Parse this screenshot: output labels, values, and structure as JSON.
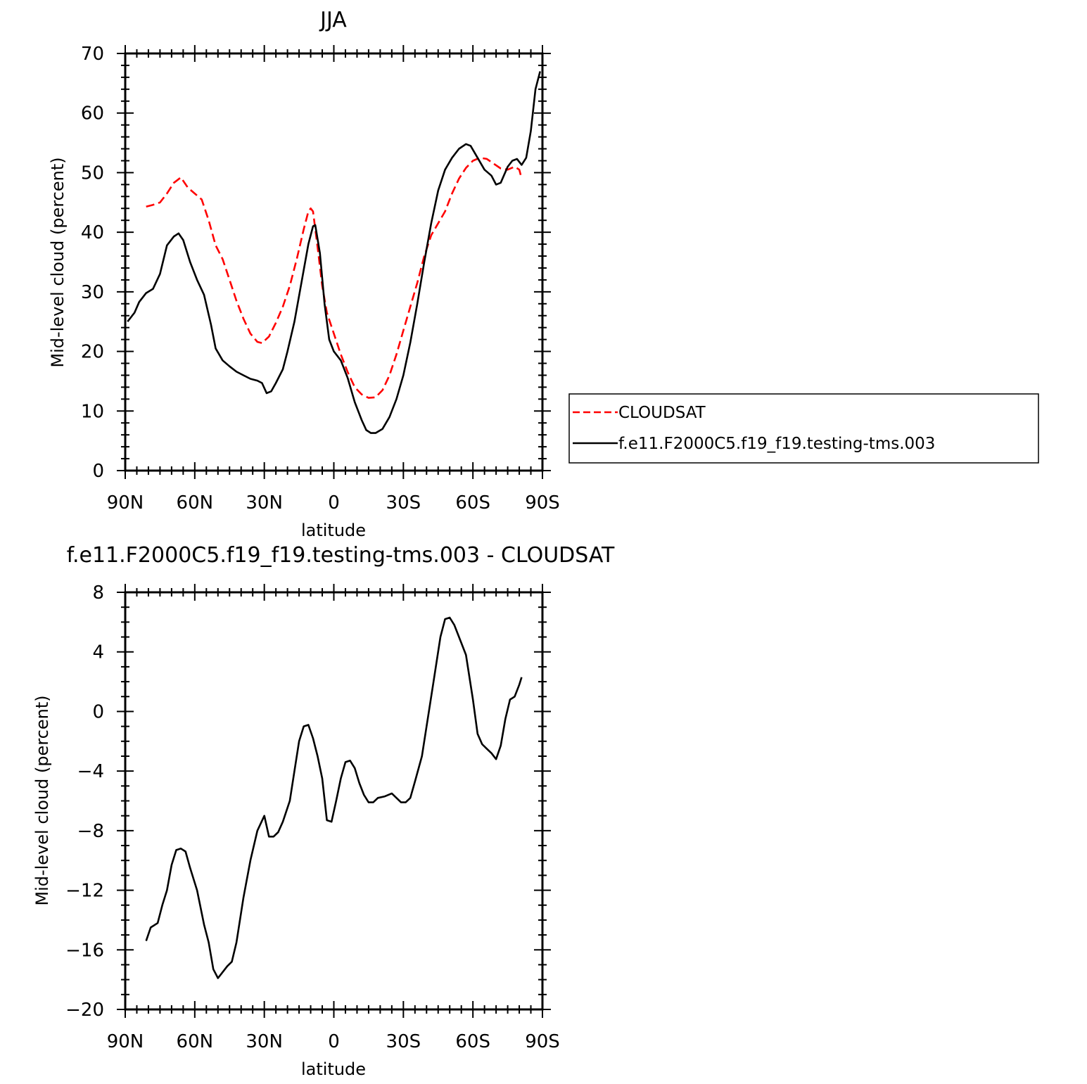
{
  "chart_data": [
    {
      "type": "line",
      "title": "JJA",
      "xlabel": "latitude",
      "ylabel": "Mid-level cloud (percent)",
      "xlim": [
        90,
        -90
      ],
      "ylim": [
        0,
        70
      ],
      "xticks": [
        {
          "value": 90,
          "label": "90N"
        },
        {
          "value": 60,
          "label": "60N"
        },
        {
          "value": 30,
          "label": "30N"
        },
        {
          "value": 0,
          "label": "0"
        },
        {
          "value": -30,
          "label": "30S"
        },
        {
          "value": -60,
          "label": "60S"
        },
        {
          "value": -90,
          "label": "90S"
        }
      ],
      "yticks": [
        {
          "value": 0,
          "label": "0"
        },
        {
          "value": 10,
          "label": "10"
        },
        {
          "value": 20,
          "label": "20"
        },
        {
          "value": 30,
          "label": "30"
        },
        {
          "value": 40,
          "label": "40"
        },
        {
          "value": 50,
          "label": "50"
        },
        {
          "value": 60,
          "label": "60"
        },
        {
          "value": 70,
          "label": "70"
        }
      ],
      "legend_position": "right",
      "series": [
        {
          "name": "CLOUDSAT",
          "color": "#ff0000",
          "dash": "dashed",
          "points": [
            [
              81,
              44.3
            ],
            [
              78,
              44.6
            ],
            [
              75,
              45.0
            ],
            [
              72,
              46.5
            ],
            [
              69,
              48.3
            ],
            [
              66,
              49.2
            ],
            [
              63,
              47.5
            ],
            [
              60,
              46.5
            ],
            [
              57,
              45.5
            ],
            [
              54,
              42.0
            ],
            [
              51,
              37.8
            ],
            [
              48,
              35.5
            ],
            [
              45,
              32.0
            ],
            [
              42,
              28.5
            ],
            [
              39,
              25.5
            ],
            [
              36,
              23.0
            ],
            [
              33,
              21.6
            ],
            [
              31,
              21.4
            ],
            [
              28,
              22.5
            ],
            [
              25,
              24.8
            ],
            [
              22,
              27.5
            ],
            [
              19,
              31.0
            ],
            [
              16,
              35.5
            ],
            [
              13,
              40.5
            ],
            [
              11,
              43.5
            ],
            [
              10,
              44.0
            ],
            [
              9,
              43.5
            ],
            [
              7,
              37.5
            ],
            [
              5,
              31.0
            ],
            [
              3,
              26.5
            ],
            [
              0,
              23.0
            ],
            [
              -3,
              19.5
            ],
            [
              -6,
              16.5
            ],
            [
              -9,
              14.0
            ],
            [
              -12,
              12.8
            ],
            [
              -15,
              12.2
            ],
            [
              -18,
              12.3
            ],
            [
              -21,
              13.5
            ],
            [
              -24,
              16.0
            ],
            [
              -27,
              19.5
            ],
            [
              -30,
              23.5
            ],
            [
              -33,
              27.5
            ],
            [
              -36,
              31.5
            ],
            [
              -39,
              36.0
            ],
            [
              -42,
              39.5
            ],
            [
              -45,
              41.5
            ],
            [
              -48,
              43.5
            ],
            [
              -51,
              46.5
            ],
            [
              -54,
              49.0
            ],
            [
              -57,
              50.8
            ],
            [
              -60,
              52.0
            ],
            [
              -63,
              52.5
            ],
            [
              -66,
              52.3
            ],
            [
              -69,
              51.5
            ],
            [
              -72,
              50.7
            ],
            [
              -75,
              50.5
            ],
            [
              -78,
              51.0
            ],
            [
              -80,
              50.5
            ],
            [
              -81,
              49.0
            ]
          ]
        },
        {
          "name": "f.e11.F2000C5.f19_f19.testing-tms.003",
          "color": "#000000",
          "dash": "solid",
          "points": [
            [
              89,
              25.0
            ],
            [
              86,
              26.5
            ],
            [
              84,
              28.3
            ],
            [
              81,
              29.8
            ],
            [
              78,
              30.5
            ],
            [
              75,
              33.0
            ],
            [
              72,
              37.8
            ],
            [
              69,
              39.3
            ],
            [
              67,
              39.8
            ],
            [
              65,
              38.7
            ],
            [
              62,
              35.0
            ],
            [
              59,
              32.0
            ],
            [
              56,
              29.5
            ],
            [
              53,
              24.5
            ],
            [
              51,
              20.5
            ],
            [
              48,
              18.5
            ],
            [
              45,
              17.5
            ],
            [
              42,
              16.6
            ],
            [
              39,
              16.0
            ],
            [
              36,
              15.4
            ],
            [
              33,
              15.1
            ],
            [
              31,
              14.7
            ],
            [
              29,
              13.0
            ],
            [
              27,
              13.3
            ],
            [
              25,
              14.7
            ],
            [
              22,
              17.0
            ],
            [
              20,
              20.0
            ],
            [
              17,
              25.0
            ],
            [
              14,
              31.5
            ],
            [
              11,
              38.0
            ],
            [
              9,
              41.0
            ],
            [
              8,
              41.2
            ],
            [
              6,
              36.5
            ],
            [
              4,
              28.0
            ],
            [
              2,
              22.0
            ],
            [
              0,
              20.0
            ],
            [
              -3,
              18.5
            ],
            [
              -6,
              15.5
            ],
            [
              -9,
              11.5
            ],
            [
              -12,
              8.5
            ],
            [
              -14,
              6.8
            ],
            [
              -16,
              6.3
            ],
            [
              -18,
              6.3
            ],
            [
              -21,
              7.0
            ],
            [
              -24,
              9.0
            ],
            [
              -27,
              12.0
            ],
            [
              -30,
              16.0
            ],
            [
              -33,
              21.5
            ],
            [
              -36,
              28.0
            ],
            [
              -39,
              35.0
            ],
            [
              -42,
              41.5
            ],
            [
              -45,
              47.0
            ],
            [
              -48,
              50.5
            ],
            [
              -51,
              52.5
            ],
            [
              -54,
              54.0
            ],
            [
              -57,
              54.8
            ],
            [
              -59,
              54.5
            ],
            [
              -62,
              52.5
            ],
            [
              -65,
              50.5
            ],
            [
              -68,
              49.5
            ],
            [
              -70,
              48.0
            ],
            [
              -72,
              48.3
            ],
            [
              -75,
              51.0
            ],
            [
              -77,
              52.0
            ],
            [
              -79,
              52.3
            ],
            [
              -81,
              51.3
            ],
            [
              -83,
              52.5
            ],
            [
              -85,
              57.0
            ],
            [
              -87,
              64.0
            ],
            [
              -89,
              67.0
            ]
          ]
        }
      ]
    },
    {
      "type": "line",
      "title": "f.e11.F2000C5.f19_f19.testing-tms.003 - CLOUDSAT",
      "xlabel": "latitude",
      "ylabel": "Mid-level cloud (percent)",
      "xlim": [
        90,
        -90
      ],
      "ylim": [
        -20,
        8
      ],
      "xticks": [
        {
          "value": 90,
          "label": "90N"
        },
        {
          "value": 60,
          "label": "60N"
        },
        {
          "value": 30,
          "label": "30N"
        },
        {
          "value": 0,
          "label": "0"
        },
        {
          "value": -30,
          "label": "30S"
        },
        {
          "value": -60,
          "label": "60S"
        },
        {
          "value": -90,
          "label": "90S"
        }
      ],
      "yticks": [
        {
          "value": -20,
          "label": "−20"
        },
        {
          "value": -16,
          "label": "−16"
        },
        {
          "value": -12,
          "label": "−12"
        },
        {
          "value": -8,
          "label": "−8"
        },
        {
          "value": -4,
          "label": "−4"
        },
        {
          "value": 0,
          "label": "0"
        },
        {
          "value": 4,
          "label": "4"
        },
        {
          "value": 8,
          "label": "8"
        }
      ],
      "series": [
        {
          "color": "#000000",
          "dash": "solid",
          "points": [
            [
              81,
              -15.4
            ],
            [
              79,
              -14.5
            ],
            [
              76,
              -14.2
            ],
            [
              74,
              -13.0
            ],
            [
              72,
              -12.0
            ],
            [
              70,
              -10.3
            ],
            [
              68,
              -9.3
            ],
            [
              66,
              -9.2
            ],
            [
              64,
              -9.4
            ],
            [
              62,
              -10.5
            ],
            [
              59,
              -12.0
            ],
            [
              56,
              -14.3
            ],
            [
              54,
              -15.5
            ],
            [
              52,
              -17.3
            ],
            [
              50,
              -17.9
            ],
            [
              48,
              -17.5
            ],
            [
              46,
              -17.1
            ],
            [
              44,
              -16.8
            ],
            [
              42,
              -15.5
            ],
            [
              39,
              -12.5
            ],
            [
              36,
              -10.0
            ],
            [
              33,
              -8.0
            ],
            [
              30,
              -7.0
            ],
            [
              28,
              -8.4
            ],
            [
              26,
              -8.4
            ],
            [
              24,
              -8.1
            ],
            [
              22,
              -7.4
            ],
            [
              19,
              -6.0
            ],
            [
              17,
              -4.0
            ],
            [
              15,
              -2.0
            ],
            [
              13,
              -1.0
            ],
            [
              11,
              -0.9
            ],
            [
              9,
              -1.8
            ],
            [
              7,
              -3.0
            ],
            [
              5,
              -4.5
            ],
            [
              3,
              -7.3
            ],
            [
              1,
              -7.4
            ],
            [
              -1,
              -6.0
            ],
            [
              -3,
              -4.5
            ],
            [
              -5,
              -3.4
            ],
            [
              -7,
              -3.3
            ],
            [
              -9,
              -3.8
            ],
            [
              -11,
              -4.8
            ],
            [
              -13,
              -5.6
            ],
            [
              -15,
              -6.1
            ],
            [
              -17,
              -6.1
            ],
            [
              -19,
              -5.8
            ],
            [
              -22,
              -5.7
            ],
            [
              -25,
              -5.5
            ],
            [
              -27,
              -5.8
            ],
            [
              -29,
              -6.1
            ],
            [
              -31,
              -6.1
            ],
            [
              -33,
              -5.8
            ],
            [
              -35,
              -4.7
            ],
            [
              -38,
              -3.0
            ],
            [
              -40,
              -1.0
            ],
            [
              -43,
              2.0
            ],
            [
              -46,
              5.0
            ],
            [
              -48,
              6.2
            ],
            [
              -50,
              6.3
            ],
            [
              -52,
              5.8
            ],
            [
              -55,
              4.6
            ],
            [
              -57,
              3.8
            ],
            [
              -60,
              0.8
            ],
            [
              -62,
              -1.5
            ],
            [
              -64,
              -2.2
            ],
            [
              -66,
              -2.5
            ],
            [
              -68,
              -2.8
            ],
            [
              -70,
              -3.2
            ],
            [
              -72,
              -2.3
            ],
            [
              -74,
              -0.5
            ],
            [
              -76,
              0.8
            ],
            [
              -78,
              1.0
            ],
            [
              -80,
              1.8
            ],
            [
              -81,
              2.3
            ]
          ]
        }
      ]
    }
  ]
}
